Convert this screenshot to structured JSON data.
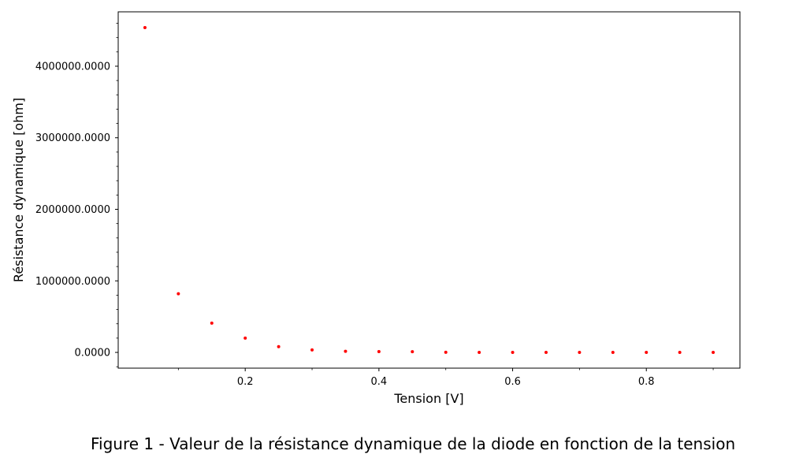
{
  "chart_data": {
    "type": "scatter",
    "xlabel": "Tension [V]",
    "ylabel": "Résistance dynamique [ohm]",
    "xlim": [
      0.01,
      0.94
    ],
    "ylim": [
      -220000,
      4760000
    ],
    "x_ticks": [
      0.2,
      0.4,
      0.6,
      0.8
    ],
    "x_tick_labels": [
      "0.2",
      "0.4",
      "0.6",
      "0.8"
    ],
    "x_minor_ticks": [
      0.1,
      0.3,
      0.5,
      0.7,
      0.9
    ],
    "y_ticks": [
      0,
      1000000,
      2000000,
      3000000,
      4000000
    ],
    "y_tick_labels": [
      "0.0000",
      "1000000.0000",
      "2000000.0000",
      "3000000.0000",
      "4000000.0000"
    ],
    "y_minor_step": 200000,
    "grid": false,
    "marker_color": "#ff0000",
    "x": [
      0.05,
      0.1,
      0.15,
      0.2,
      0.25,
      0.3,
      0.35,
      0.4,
      0.45,
      0.5,
      0.55,
      0.6,
      0.65,
      0.7,
      0.75,
      0.8,
      0.85,
      0.9
    ],
    "y": [
      4540000,
      820000,
      410000,
      200000,
      80000,
      35000,
      15000,
      12000,
      10000,
      2000,
      1000,
      500,
      300,
      200,
      150,
      100,
      80,
      60
    ]
  },
  "caption": "Figure 1 - Valeur de la résistance dynamique de la diode en fonction de la tension"
}
